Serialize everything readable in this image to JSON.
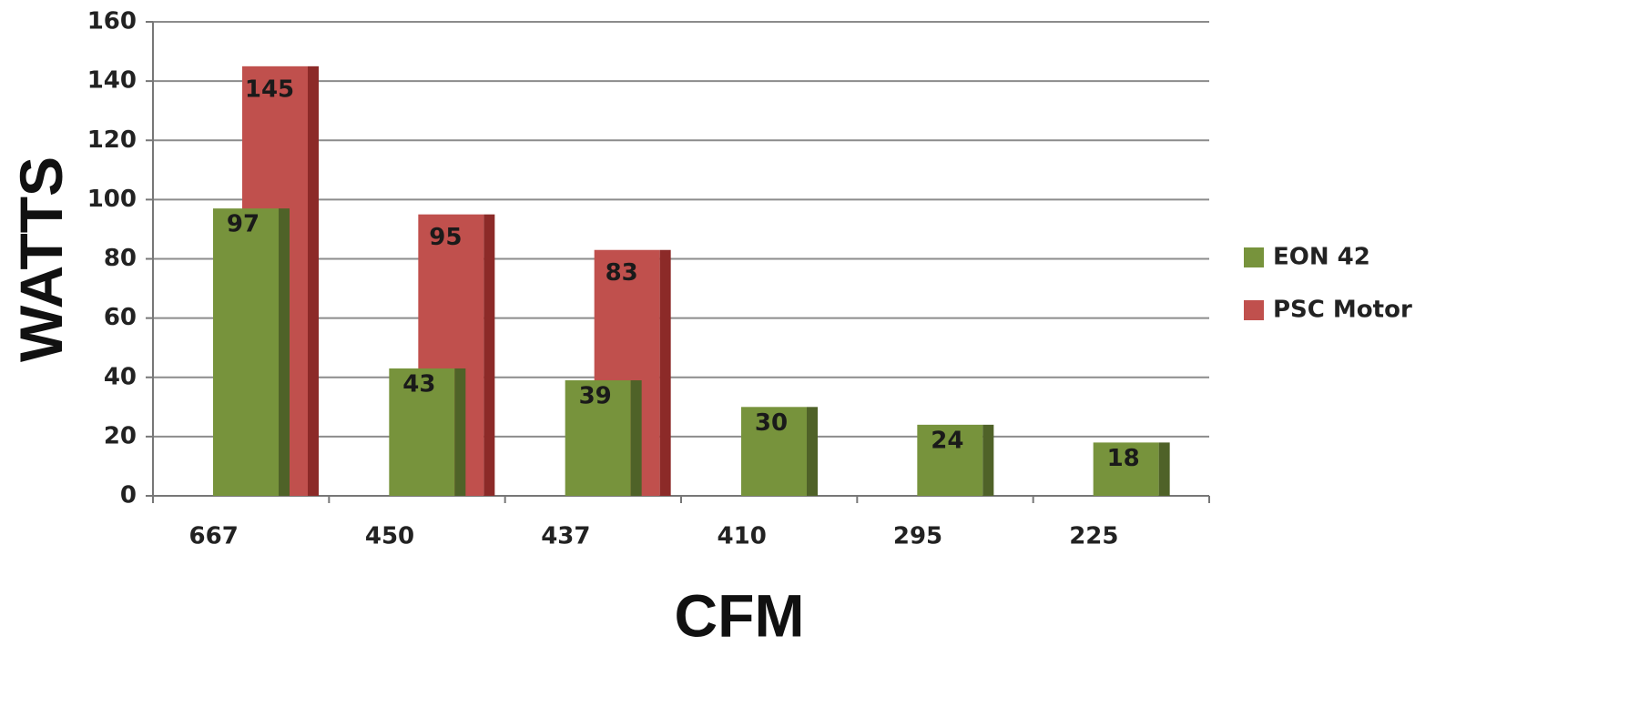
{
  "chart_data": {
    "type": "bar",
    "title": "",
    "xlabel": "CFM",
    "ylabel": "WATTS",
    "categories": [
      "667",
      "450",
      "437",
      "410",
      "295",
      "225"
    ],
    "series": [
      {
        "name": "EON 42",
        "values": [
          97,
          43,
          39,
          30,
          24,
          18
        ],
        "color": "#77933c",
        "shade": "#4f6228"
      },
      {
        "name": "PSC Motor",
        "values": [
          145,
          95,
          83,
          null,
          null,
          null
        ],
        "color": "#c0504d",
        "shade": "#8c2a28"
      }
    ],
    "ylim": [
      0,
      160
    ],
    "yticks": [
      0,
      20,
      40,
      60,
      80,
      100,
      120,
      140,
      160
    ],
    "grid": true,
    "legend_position": "right"
  }
}
